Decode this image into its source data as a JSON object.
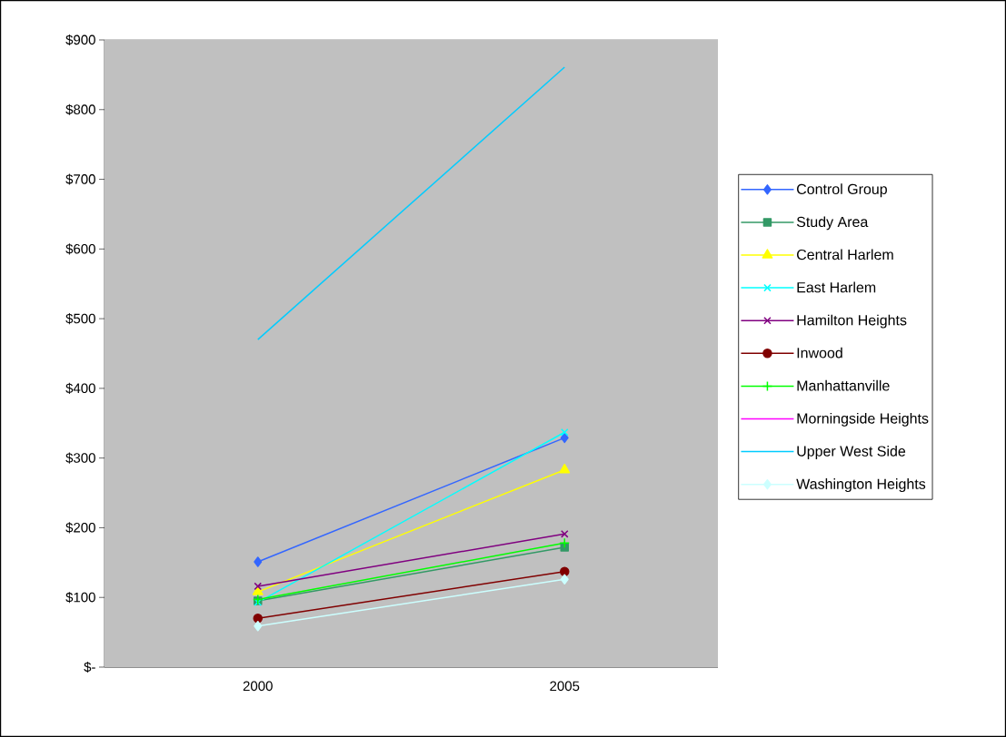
{
  "chart_data": {
    "type": "line",
    "categories": [
      "2000",
      "2005"
    ],
    "ylim": [
      0,
      900
    ],
    "yticks": [
      {
        "value": 0,
        "label": "$-"
      },
      {
        "value": 100,
        "label": "$100"
      },
      {
        "value": 200,
        "label": "$200"
      },
      {
        "value": 300,
        "label": "$300"
      },
      {
        "value": 400,
        "label": "$400"
      },
      {
        "value": 500,
        "label": "$500"
      },
      {
        "value": 600,
        "label": "$600"
      },
      {
        "value": 700,
        "label": "$700"
      },
      {
        "value": 800,
        "label": "$800"
      },
      {
        "value": 900,
        "label": "$900"
      }
    ],
    "grid": "y",
    "legend": "right",
    "series": [
      {
        "name": "Control Group",
        "color": "#3366ff",
        "marker": "diamond",
        "values": [
          151,
          329
        ]
      },
      {
        "name": "Study Area",
        "color": "#339966",
        "marker": "square",
        "values": [
          95,
          172
        ]
      },
      {
        "name": "Central Harlem",
        "color": "#ffff00",
        "marker": "triangle",
        "values": [
          108,
          283
        ]
      },
      {
        "name": "East Harlem",
        "color": "#00ffff",
        "marker": "cross",
        "values": [
          93,
          337
        ]
      },
      {
        "name": "Hamilton Heights",
        "color": "#800080",
        "marker": "cross",
        "values": [
          116,
          191
        ]
      },
      {
        "name": "Inwood",
        "color": "#800000",
        "marker": "circle",
        "values": [
          70,
          137
        ]
      },
      {
        "name": "Manhattanville",
        "color": "#00ff00",
        "marker": "plus",
        "values": [
          97,
          178
        ]
      },
      {
        "name": "Morningside Heights",
        "color": "#ff00ff",
        "marker": "none",
        "values": [
          null,
          null
        ]
      },
      {
        "name": "Upper West Side",
        "color": "#00ccff",
        "marker": "none",
        "values": [
          470,
          861
        ]
      },
      {
        "name": "Washington Heights",
        "color": "#ccffff",
        "marker": "diamond",
        "values": [
          59,
          126
        ]
      }
    ]
  }
}
